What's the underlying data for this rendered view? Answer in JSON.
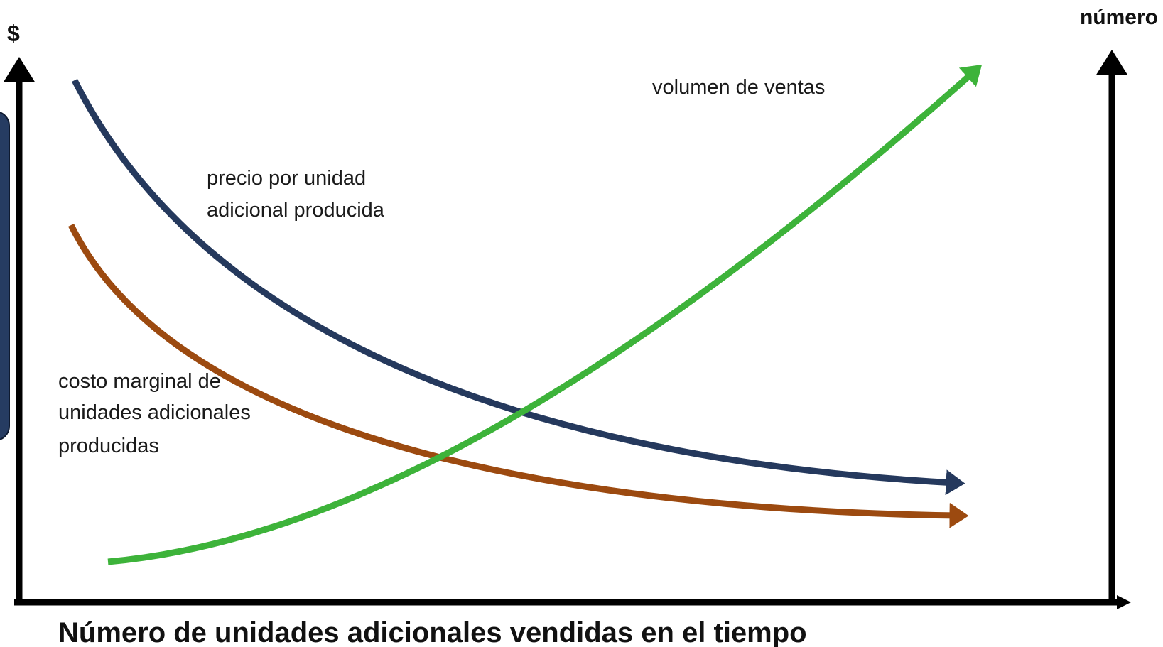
{
  "axes": {
    "y_label": "$",
    "y2_label": "número",
    "x_label": "Número de unidades adicionales vendidas en el tiempo"
  },
  "curves": [
    {
      "label": [
        "volumen de ventas"
      ]
    },
    {
      "label": [
        "precio por unidad",
        "adicional producida"
      ]
    },
    {
      "label": [
        "costo marginal de",
        "unidades adicionales",
        "producidas"
      ]
    }
  ]
}
